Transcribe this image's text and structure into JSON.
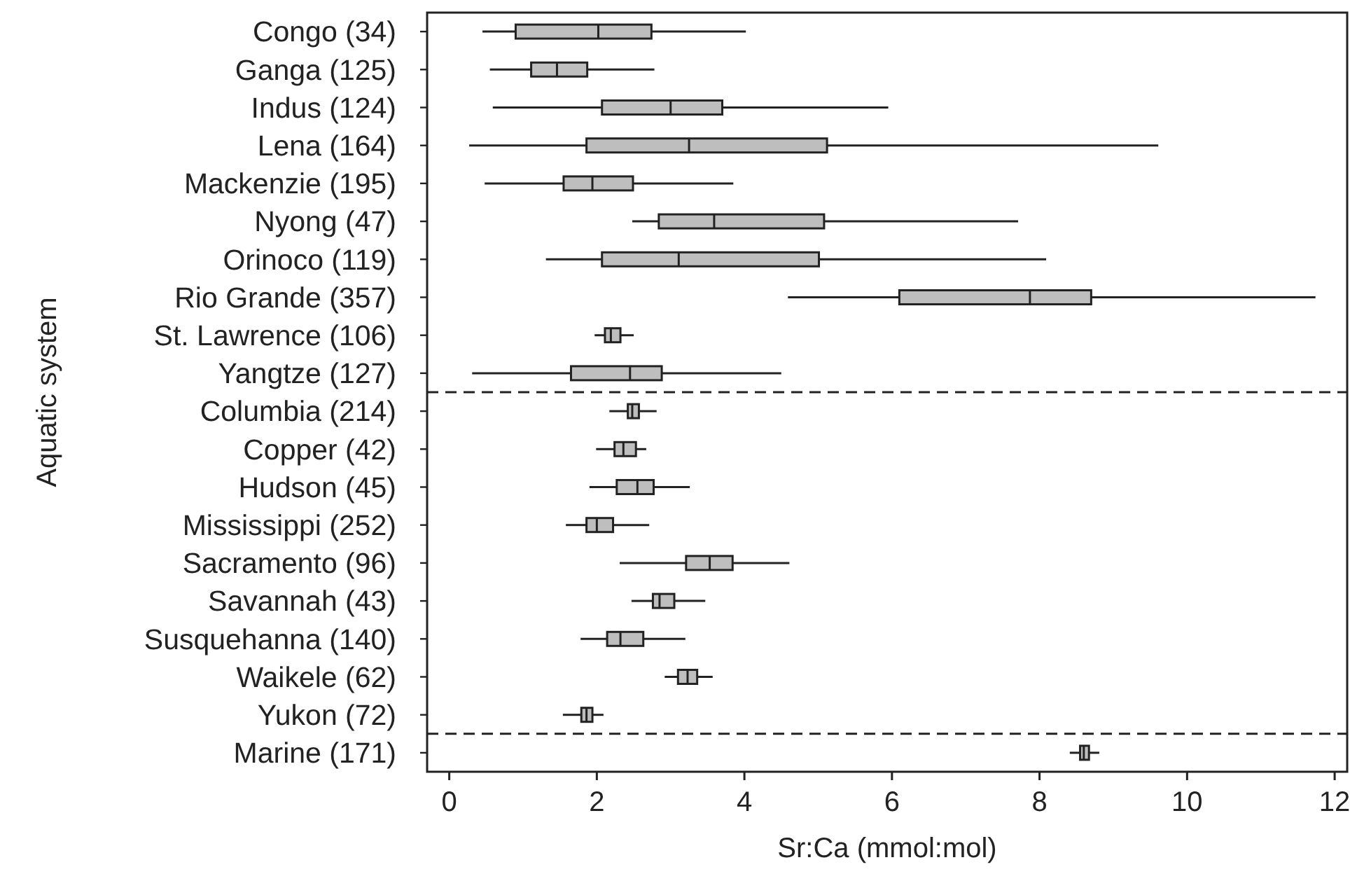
{
  "chart_data": {
    "type": "box",
    "orientation": "horizontal",
    "xlabel": "Sr:Ca (mmol:mol)",
    "ylabel": "Aquatic system",
    "color": "#bebebe",
    "categories": [
      "Congo (34)",
      "Ganga (125)",
      "Indus (124)",
      "Lena (164)",
      "Mackenzie (195)",
      "Nyong (47)",
      "Orinoco (119)",
      "Rio Grande (357)",
      "St. Lawrence (106)",
      "Yangtze (127)",
      "Columbia (214)",
      "Copper (42)",
      "Hudson (45)",
      "Mississippi (252)",
      "Sacramento (96)",
      "Savannah (43)",
      "Susquehanna (140)",
      "Waikele (62)",
      "Yukon (72)",
      "Marine (171)"
    ],
    "boxes": [
      {
        "low": 0.45,
        "q1": 0.9,
        "median": 2.02,
        "q3": 2.74,
        "high": 4.02
      },
      {
        "low": 0.55,
        "q1": 1.11,
        "median": 1.46,
        "q3": 1.87,
        "high": 2.78
      },
      {
        "low": 0.59,
        "q1": 2.07,
        "median": 3.0,
        "q3": 3.7,
        "high": 5.95
      },
      {
        "low": 0.27,
        "q1": 1.86,
        "median": 3.25,
        "q3": 5.12,
        "high": 9.61
      },
      {
        "low": 0.48,
        "q1": 1.55,
        "median": 1.94,
        "q3": 2.49,
        "high": 3.85
      },
      {
        "low": 2.48,
        "q1": 2.84,
        "median": 3.59,
        "q3": 5.08,
        "high": 7.71
      },
      {
        "low": 1.31,
        "q1": 2.07,
        "median": 3.11,
        "q3": 5.01,
        "high": 8.09
      },
      {
        "low": 4.59,
        "q1": 6.1,
        "median": 7.87,
        "q3": 8.7,
        "high": 11.74
      },
      {
        "low": 1.97,
        "q1": 2.11,
        "median": 2.19,
        "q3": 2.32,
        "high": 2.5
      },
      {
        "low": 0.31,
        "q1": 1.65,
        "median": 2.45,
        "q3": 2.88,
        "high": 4.5
      },
      {
        "low": 2.17,
        "q1": 2.42,
        "median": 2.48,
        "q3": 2.57,
        "high": 2.81
      },
      {
        "low": 1.99,
        "q1": 2.24,
        "median": 2.36,
        "q3": 2.53,
        "high": 2.67
      },
      {
        "low": 1.9,
        "q1": 2.27,
        "median": 2.55,
        "q3": 2.77,
        "high": 3.26
      },
      {
        "low": 1.58,
        "q1": 1.86,
        "median": 2.0,
        "q3": 2.22,
        "high": 2.71
      },
      {
        "low": 2.31,
        "q1": 3.21,
        "median": 3.53,
        "q3": 3.84,
        "high": 4.61
      },
      {
        "low": 2.47,
        "q1": 2.76,
        "median": 2.85,
        "q3": 3.05,
        "high": 3.47
      },
      {
        "low": 1.78,
        "q1": 2.14,
        "median": 2.32,
        "q3": 2.63,
        "high": 3.2
      },
      {
        "low": 2.92,
        "q1": 3.1,
        "median": 3.23,
        "q3": 3.36,
        "high": 3.57
      },
      {
        "low": 1.54,
        "q1": 1.79,
        "median": 1.86,
        "q3": 1.94,
        "high": 2.09
      },
      {
        "low": 8.41,
        "q1": 8.55,
        "median": 8.6,
        "q3": 8.67,
        "high": 8.81
      }
    ],
    "xlim": [
      -0.3,
      12.17
    ],
    "xticks": [
      0,
      2,
      4,
      6,
      8,
      10,
      12
    ]
  }
}
